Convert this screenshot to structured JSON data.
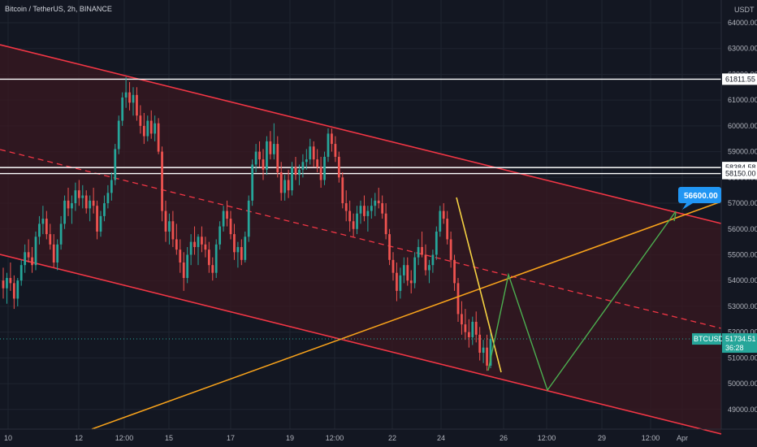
{
  "header": {
    "title": "Bitcoin / TetherUS, 2h, BINANCE",
    "currency": "USDT"
  },
  "colors": {
    "background": "#131722",
    "grid": "#1f2430",
    "channel": "#f23645",
    "channel_fill": "#3a1820",
    "support": "#f7a21b",
    "projection": "#4caf50",
    "breakout": "#f5d142",
    "bull": "#26a69a",
    "bear": "#ef5350",
    "level": "#ffffff",
    "target_badge": "#2196f3",
    "price_badge": "#26a69a"
  },
  "chart_data": {
    "type": "candlestick",
    "symbol": "BTCUSDT",
    "interval": "2h",
    "exchange": "BINANCE",
    "ylim": [
      48500,
      64500
    ],
    "y_ticks": [
      "64000.00",
      "63000.00",
      "62000.00",
      "61000.00",
      "60000.00",
      "59000.00",
      "58000.00",
      "57000.00",
      "56000.00",
      "55000.00",
      "54000.00",
      "53000.00",
      "52000.00",
      "51000.00",
      "50000.00",
      "49000.00"
    ],
    "x_ticks": [
      "10",
      "12",
      "12:00",
      "15",
      "17",
      "19",
      "12:00",
      "22",
      "24",
      "26",
      "12:00",
      "29",
      "12:00",
      "Apr"
    ],
    "horizontal_levels": [
      {
        "value": 61811.55,
        "label": "61811.55"
      },
      {
        "value": 58384.58,
        "label": "58384.58"
      },
      {
        "value": 58150.0,
        "label": "58150.00"
      }
    ],
    "current_price": {
      "symbol": "BTCUSDT",
      "value": "51734.51",
      "countdown": "36:28"
    },
    "target": {
      "label": "56600.00"
    },
    "candles": [
      [
        54000,
        54500,
        53300,
        53700
      ],
      [
        53700,
        54300,
        53100,
        54100
      ],
      [
        54100,
        54700,
        53600,
        53900
      ],
      [
        53900,
        54200,
        52900,
        53300
      ],
      [
        53300,
        54100,
        53000,
        54000
      ],
      [
        54000,
        54800,
        53800,
        54600
      ],
      [
        54600,
        55400,
        54300,
        55100
      ],
      [
        55100,
        55600,
        54700,
        54900
      ],
      [
        54900,
        55300,
        54300,
        54600
      ],
      [
        54600,
        55900,
        54400,
        55700
      ],
      [
        55700,
        56500,
        55400,
        56200
      ],
      [
        56200,
        56900,
        55800,
        56400
      ],
      [
        56400,
        56700,
        55600,
        55800
      ],
      [
        55800,
        56200,
        55200,
        55400
      ],
      [
        55400,
        55800,
        54500,
        54700
      ],
      [
        54700,
        55600,
        54400,
        55400
      ],
      [
        55400,
        56500,
        55200,
        56200
      ],
      [
        56200,
        57300,
        56000,
        57100
      ],
      [
        57100,
        57600,
        56500,
        56800
      ],
      [
        56800,
        57300,
        56200,
        57000
      ],
      [
        57000,
        57800,
        56700,
        57500
      ],
      [
        57500,
        57900,
        56900,
        57200
      ],
      [
        57200,
        57700,
        56800,
        57300
      ],
      [
        57300,
        57500,
        56600,
        56800
      ],
      [
        56800,
        57300,
        56300,
        57100
      ],
      [
        57100,
        57600,
        56600,
        56900
      ],
      [
        56900,
        57100,
        55600,
        55900
      ],
      [
        55900,
        56700,
        55700,
        56500
      ],
      [
        56500,
        57300,
        56300,
        57000
      ],
      [
        57000,
        57700,
        56800,
        57400
      ],
      [
        57400,
        58200,
        57100,
        57900
      ],
      [
        57900,
        59300,
        57700,
        59100
      ],
      [
        59100,
        60400,
        58900,
        60200
      ],
      [
        60200,
        61300,
        60000,
        61100
      ],
      [
        61100,
        61900,
        60700,
        61300
      ],
      [
        61300,
        61700,
        60600,
        60900
      ],
      [
        60900,
        61500,
        60400,
        61200
      ],
      [
        61200,
        61500,
        60200,
        60400
      ],
      [
        60400,
        60800,
        59700,
        60000
      ],
      [
        60000,
        60500,
        59300,
        59600
      ],
      [
        59600,
        60400,
        59400,
        60200
      ],
      [
        60200,
        60600,
        59500,
        59700
      ],
      [
        59700,
        60400,
        59400,
        60100
      ],
      [
        60100,
        60300,
        58900,
        59000
      ],
      [
        59000,
        59200,
        56300,
        56700
      ],
      [
        56700,
        57100,
        55500,
        55900
      ],
      [
        55900,
        56600,
        55400,
        56300
      ],
      [
        56300,
        56700,
        55300,
        55600
      ],
      [
        55600,
        56200,
        55000,
        55200
      ],
      [
        55200,
        55600,
        54300,
        54700
      ],
      [
        54700,
        55100,
        53600,
        54100
      ],
      [
        54100,
        55300,
        53900,
        55000
      ],
      [
        55000,
        55800,
        54600,
        55500
      ],
      [
        55500,
        56100,
        55000,
        55300
      ],
      [
        55300,
        55800,
        54600,
        55700
      ],
      [
        55700,
        56100,
        55100,
        55400
      ],
      [
        55400,
        55700,
        54900,
        55200
      ],
      [
        55200,
        55500,
        54300,
        54600
      ],
      [
        54600,
        54900,
        54000,
        54300
      ],
      [
        54300,
        55600,
        54100,
        55400
      ],
      [
        55400,
        56300,
        55200,
        56100
      ],
      [
        56100,
        56900,
        55900,
        56700
      ],
      [
        56700,
        57100,
        56100,
        56400
      ],
      [
        56400,
        56700,
        55600,
        55800
      ],
      [
        55800,
        56200,
        54800,
        55100
      ],
      [
        55100,
        55500,
        54500,
        55300
      ],
      [
        55300,
        55600,
        54600,
        54800
      ],
      [
        54800,
        55900,
        54700,
        55700
      ],
      [
        55700,
        57300,
        55500,
        57100
      ],
      [
        57100,
        58700,
        56900,
        58500
      ],
      [
        58500,
        59300,
        58200,
        59000
      ],
      [
        59000,
        59400,
        58400,
        58700
      ],
      [
        58700,
        59100,
        57900,
        58300
      ],
      [
        58300,
        59600,
        58100,
        59400
      ],
      [
        59400,
        59800,
        58700,
        58900
      ],
      [
        58900,
        60100,
        58700,
        59300
      ],
      [
        59300,
        59600,
        58000,
        58200
      ],
      [
        58200,
        58600,
        57100,
        57400
      ],
      [
        57400,
        58100,
        57100,
        57900
      ],
      [
        57900,
        58300,
        57200,
        57500
      ],
      [
        57500,
        58600,
        57300,
        58400
      ],
      [
        58400,
        58800,
        57900,
        58100
      ],
      [
        58100,
        58500,
        57700,
        58300
      ],
      [
        58300,
        58900,
        58000,
        58600
      ],
      [
        58600,
        59100,
        58300,
        58700
      ],
      [
        58700,
        59500,
        58500,
        59200
      ],
      [
        59200,
        59400,
        58400,
        58700
      ],
      [
        58700,
        59100,
        58200,
        58400
      ],
      [
        58400,
        58800,
        57600,
        57900
      ],
      [
        57900,
        59000,
        57700,
        58800
      ],
      [
        58800,
        59900,
        58600,
        59700
      ],
      [
        59700,
        59900,
        59000,
        59300
      ],
      [
        59300,
        59600,
        58600,
        58800
      ],
      [
        58800,
        59000,
        57800,
        58000
      ],
      [
        58000,
        58200,
        56800,
        57000
      ],
      [
        57000,
        57500,
        56300,
        56700
      ],
      [
        56700,
        57100,
        55900,
        56300
      ],
      [
        56300,
        56600,
        55700,
        56000
      ],
      [
        56000,
        56900,
        55800,
        56600
      ],
      [
        56600,
        57100,
        56200,
        56900
      ],
      [
        56900,
        57300,
        56300,
        56500
      ],
      [
        56500,
        56900,
        55900,
        56700
      ],
      [
        56700,
        57200,
        56400,
        56900
      ],
      [
        56900,
        57400,
        56500,
        57100
      ],
      [
        57100,
        57600,
        56800,
        57000
      ],
      [
        57000,
        57300,
        56400,
        56600
      ],
      [
        56600,
        57000,
        55600,
        55800
      ],
      [
        55800,
        56000,
        54600,
        54800
      ],
      [
        54800,
        55100,
        54000,
        54300
      ],
      [
        54300,
        54700,
        53200,
        53600
      ],
      [
        53600,
        54500,
        53300,
        54200
      ],
      [
        54200,
        54900,
        53900,
        54600
      ],
      [
        54600,
        54900,
        53800,
        54000
      ],
      [
        54000,
        54400,
        53500,
        53900
      ],
      [
        53900,
        55100,
        53700,
        54900
      ],
      [
        54900,
        55600,
        54600,
        55300
      ],
      [
        55300,
        55900,
        54900,
        55000
      ],
      [
        55000,
        55400,
        54200,
        54400
      ],
      [
        54400,
        54800,
        53900,
        54600
      ],
      [
        54600,
        55200,
        54300,
        55000
      ],
      [
        55000,
        56100,
        54800,
        55900
      ],
      [
        55900,
        56900,
        55700,
        56700
      ],
      [
        56700,
        57000,
        56200,
        56400
      ],
      [
        56400,
        56700,
        55400,
        55600
      ],
      [
        55600,
        55900,
        54500,
        54800
      ],
      [
        54800,
        55000,
        53600,
        53900
      ],
      [
        53900,
        54100,
        52400,
        52700
      ],
      [
        52700,
        53200,
        51900,
        52300
      ],
      [
        52300,
        52900,
        51700,
        52000
      ],
      [
        52000,
        52500,
        51400,
        51800
      ],
      [
        51800,
        52600,
        51500,
        52400
      ],
      [
        52400,
        52800,
        51600,
        51900
      ],
      [
        51900,
        52200,
        50900,
        51200
      ],
      [
        51200,
        51700,
        50800,
        51400
      ],
      [
        51400,
        51900,
        50500,
        50700
      ],
      [
        50700,
        52100,
        50600,
        51734
      ]
    ]
  }
}
